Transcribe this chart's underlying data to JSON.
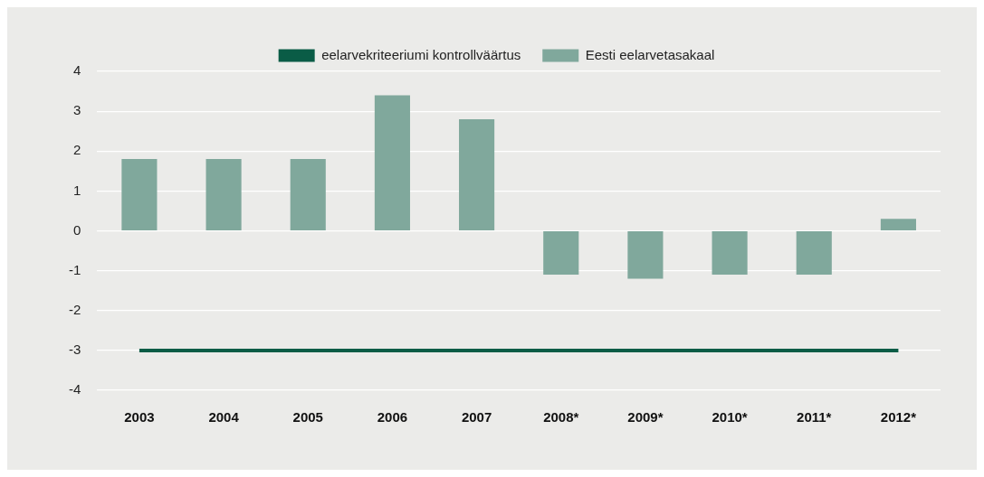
{
  "chart_data": {
    "type": "bar",
    "categories": [
      "2003",
      "2004",
      "2005",
      "2006",
      "2007",
      "2008*",
      "2009*",
      "2010*",
      "2011*",
      "2012*"
    ],
    "series": [
      {
        "name": "Eesti eelarvetasakaal",
        "color": "#80a89c",
        "values": [
          1.8,
          1.8,
          1.8,
          3.4,
          2.8,
          -1.1,
          -1.2,
          -1.1,
          -1.1,
          0.3
        ]
      },
      {
        "name": "eelarvekriteeriumi kontrollväärtus",
        "type": "line",
        "color": "#0a5c46",
        "marker": "none",
        "line_style": "solid",
        "values": [
          -3,
          -3,
          -3,
          -3,
          -3,
          -3,
          -3,
          -3,
          -3,
          -3
        ]
      }
    ],
    "ylim": [
      -4,
      4
    ],
    "yticks": [
      -4,
      -3,
      -2,
      -1,
      0,
      1,
      2,
      3,
      4
    ],
    "grid": "y",
    "legend": "top"
  }
}
